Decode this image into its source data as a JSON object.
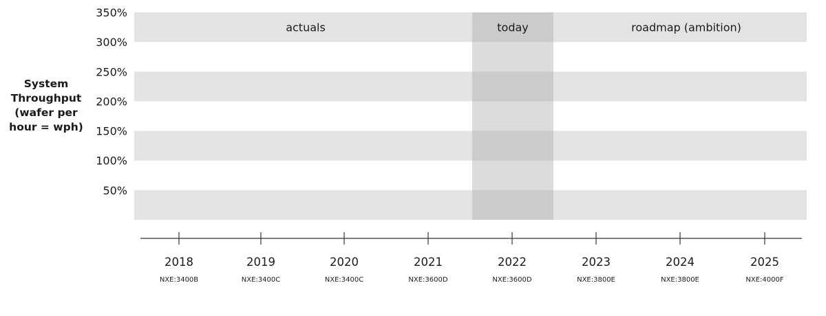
{
  "chart_data": {
    "type": "line",
    "ylabel": [
      "System",
      "Throughput",
      "(wafer per",
      "hour = wph)"
    ],
    "yticks": [
      {
        "label": "350%",
        "value": 350
      },
      {
        "label": "300%",
        "value": 300
      },
      {
        "label": "250%",
        "value": 250
      },
      {
        "label": "200%",
        "value": 200
      },
      {
        "label": "150%",
        "value": 150
      },
      {
        "label": "100%",
        "value": 100
      },
      {
        "label": "50%",
        "value": 50
      }
    ],
    "ylim": [
      0,
      350
    ],
    "x": [
      {
        "year": "2018",
        "model": "NXE:3400B"
      },
      {
        "year": "2019",
        "model": "NXE:3400C"
      },
      {
        "year": "2020",
        "model": "NXE:3400C"
      },
      {
        "year": "2021",
        "model": "NXE:3600D"
      },
      {
        "year": "2022",
        "model": "NXE:3600D"
      },
      {
        "year": "2023",
        "model": "NXE:3800E"
      },
      {
        "year": "2024",
        "model": "NXE:3800E"
      },
      {
        "year": "2025",
        "model": "NXE:4000F"
      }
    ],
    "regions": [
      {
        "label": "actuals",
        "start_year": "2018",
        "end_year": "2021"
      },
      {
        "label": "today",
        "start_year": "2022",
        "end_year": "2022"
      },
      {
        "label": "roadmap (ambition)",
        "start_year": "2023",
        "end_year": "2025"
      }
    ],
    "series": [],
    "colors": {
      "band": "#e3e3e5",
      "today_band": "#cbcbcd",
      "today_white": "#dcdcdd",
      "axis": "#333333"
    }
  }
}
